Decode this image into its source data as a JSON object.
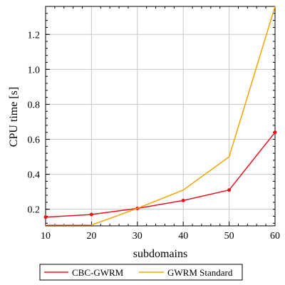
{
  "chart_data": {
    "type": "line",
    "title": "",
    "xlabel": "subdomains",
    "ylabel": "CPU time [s]",
    "x": [
      10,
      20,
      30,
      40,
      50,
      60
    ],
    "x_ticks": [
      "10",
      "20",
      "30",
      "40",
      "50",
      "60"
    ],
    "y_ticks": [
      "0.2",
      "0.4",
      "0.6",
      "0.8",
      "1.0",
      "1.2"
    ],
    "xlim": [
      10,
      60
    ],
    "ylim": [
      0.105,
      1.36
    ],
    "grid": true,
    "legend_position": "bottom",
    "series": [
      {
        "name": "CBC-GWRM",
        "values": [
          0.155,
          0.17,
          0.205,
          0.25,
          0.31,
          0.64
        ],
        "color": "#e8131d",
        "markers": true
      },
      {
        "name": "GWRM Standard",
        "values": [
          0.11,
          0.11,
          0.205,
          0.31,
          0.5,
          1.36
        ],
        "color": "#f6a300",
        "markers": false
      }
    ]
  }
}
